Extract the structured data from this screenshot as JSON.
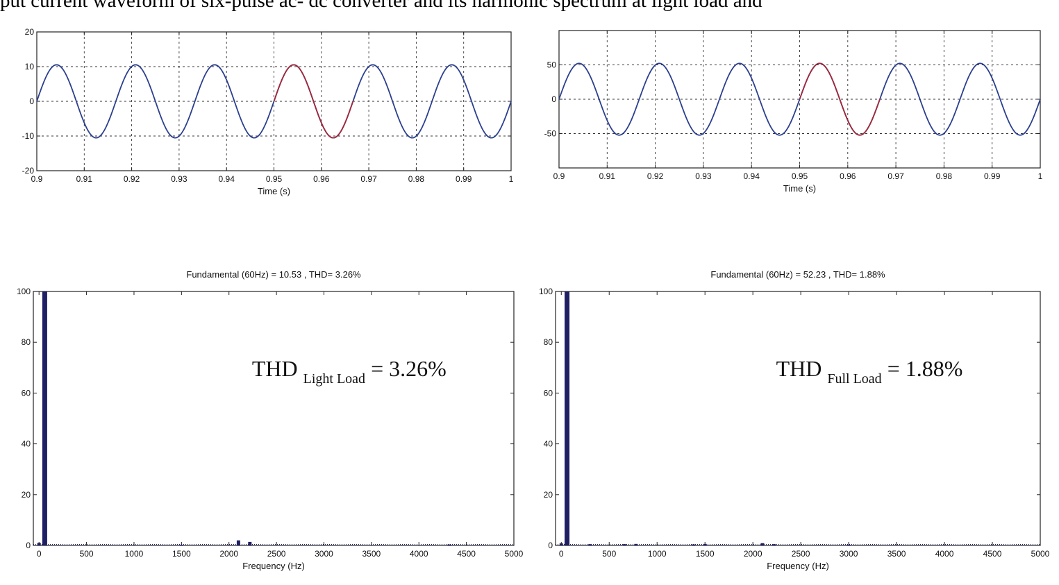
{
  "caption": "put current waveform of six-pulse ac- dc converter and its harmonic spectrum at light load and",
  "chart_data": [
    {
      "id": "light-waveform",
      "type": "line",
      "title": "",
      "xlabel": "Time (s)",
      "ylabel": "",
      "xlim": [
        0.9,
        1.0
      ],
      "ylim": [
        -20,
        20
      ],
      "xticks": [
        0.9,
        0.91,
        0.92,
        0.93,
        0.94,
        0.95,
        0.96,
        0.97,
        0.98,
        0.99,
        1
      ],
      "xtick_labels": [
        "0.9",
        "0.91",
        "0.92",
        "0.93",
        "0.94",
        "0.95",
        "0.96",
        "0.97",
        "0.98",
        "0.99",
        "1"
      ],
      "yticks": [
        -20,
        -10,
        0,
        10,
        20
      ],
      "ytick_labels": [
        "-20",
        "-10",
        "0",
        "10",
        "20"
      ],
      "grid": true,
      "series": [
        {
          "amplitude": 10.53,
          "frequency_hz": 60,
          "color": "#2b3f8f"
        },
        {
          "amplitude": 10.53,
          "frequency_hz": 60,
          "highlight_from": 0.95,
          "highlight_to": 0.9667,
          "color": "#a2283a"
        }
      ]
    },
    {
      "id": "full-waveform",
      "type": "line",
      "title": "",
      "xlabel": "Time (s)",
      "ylabel": "",
      "xlim": [
        0.9,
        1.0
      ],
      "ylim": [
        -100,
        100
      ],
      "xticks": [
        0.9,
        0.91,
        0.92,
        0.93,
        0.94,
        0.95,
        0.96,
        0.97,
        0.98,
        0.99,
        1
      ],
      "xtick_labels": [
        "0.9",
        "0.91",
        "0.92",
        "0.93",
        "0.94",
        "0.95",
        "0.96",
        "0.97",
        "0.98",
        "0.99",
        "1"
      ],
      "yticks": [
        -50,
        0,
        50
      ],
      "ytick_labels": [
        "-50",
        "0",
        "50"
      ],
      "grid": true,
      "series": [
        {
          "amplitude": 52.23,
          "frequency_hz": 60,
          "color": "#2b3f8f"
        },
        {
          "amplitude": 52.23,
          "frequency_hz": 60,
          "highlight_from": 0.95,
          "highlight_to": 0.9667,
          "color": "#a2283a"
        }
      ]
    },
    {
      "id": "light-spectrum",
      "type": "bar",
      "title": "Fundamental (60Hz) = 10.53 , THD= 3.26%",
      "xlabel": "Frequency (Hz)",
      "ylabel": "",
      "xlim": [
        -60,
        5000
      ],
      "ylim": [
        0,
        100
      ],
      "xticks": [
        0,
        500,
        1000,
        1500,
        2000,
        2500,
        3000,
        3500,
        4000,
        4500,
        5000
      ],
      "xtick_labels": [
        "0",
        "500",
        "1000",
        "1500",
        "2000",
        "2500",
        "3000",
        "3500",
        "4000",
        "4500",
        "5000"
      ],
      "yticks": [
        0,
        20,
        40,
        60,
        80,
        100
      ],
      "ytick_labels": [
        "0",
        "20",
        "40",
        "60",
        "80",
        "100"
      ],
      "grid": false,
      "bar_color": "#1f1f66",
      "bars": [
        {
          "x": 0,
          "y": 1.0
        },
        {
          "x": 60,
          "y": 100
        },
        {
          "x": 2100,
          "y": 2.0
        },
        {
          "x": 2220,
          "y": 1.4
        },
        {
          "x": 1500,
          "y": 0.3
        },
        {
          "x": 4320,
          "y": 0.4
        }
      ],
      "annotation": {
        "main": "THD",
        "sub": "Light Load",
        "value": "= 3.26%"
      }
    },
    {
      "id": "full-spectrum",
      "type": "bar",
      "title": "Fundamental (60Hz) = 52.23 , THD= 1.88%",
      "xlabel": "Frequency (Hz)",
      "ylabel": "",
      "xlim": [
        -60,
        5000
      ],
      "ylim": [
        0,
        100
      ],
      "xticks": [
        0,
        500,
        1000,
        1500,
        2000,
        2500,
        3000,
        3500,
        4000,
        4500,
        5000
      ],
      "xtick_labels": [
        "0",
        "500",
        "1000",
        "1500",
        "2000",
        "2500",
        "3000",
        "3500",
        "4000",
        "4500",
        "5000"
      ],
      "yticks": [
        0,
        20,
        40,
        60,
        80,
        100
      ],
      "ytick_labels": [
        "0",
        "20",
        "40",
        "60",
        "80",
        "100"
      ],
      "grid": false,
      "bar_color": "#1f1f66",
      "bars": [
        {
          "x": 0,
          "y": 0.8
        },
        {
          "x": 60,
          "y": 100
        },
        {
          "x": 300,
          "y": 0.5
        },
        {
          "x": 660,
          "y": 0.5
        },
        {
          "x": 780,
          "y": 0.6
        },
        {
          "x": 1380,
          "y": 0.4
        },
        {
          "x": 1500,
          "y": 0.6
        },
        {
          "x": 2100,
          "y": 0.9
        },
        {
          "x": 2220,
          "y": 0.5
        },
        {
          "x": 3000,
          "y": 0.3
        }
      ],
      "annotation": {
        "main": "THD",
        "sub": "Full Load",
        "value": "= 1.88%"
      }
    }
  ]
}
